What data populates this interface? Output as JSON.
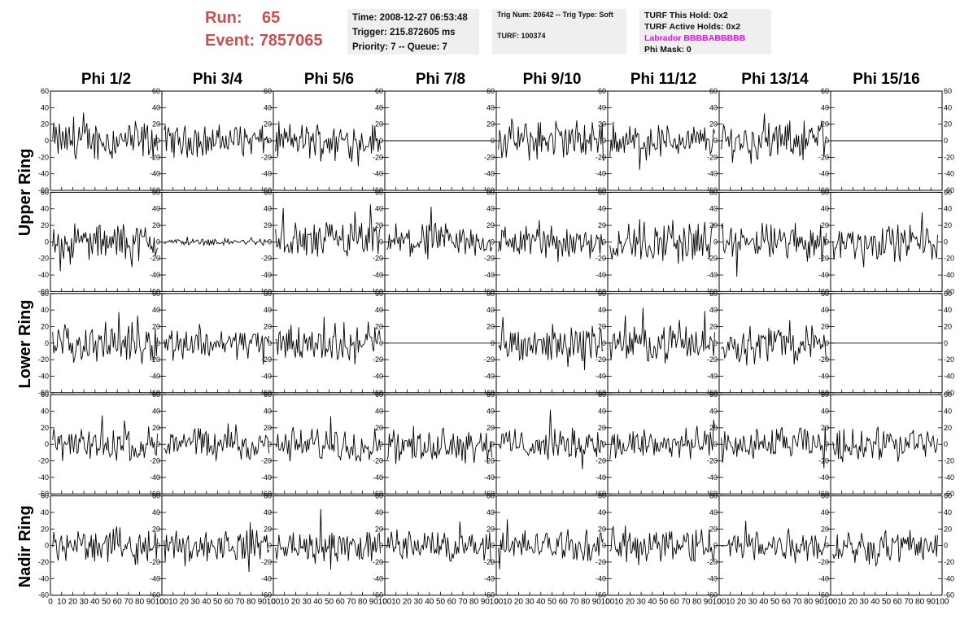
{
  "header": {
    "run_label": "Run:",
    "run_value": "65",
    "event_label": "Event:",
    "event_value": "7857065",
    "time": "Time: 2008-12-27 06:53:48",
    "trigger": "Trigger: 215.872605 ms",
    "priority": "Priority: 7 -- Queue: 7",
    "trig_num": "Trig Num: 20642 -- Trig Type: Soft",
    "turf": "TURF: 100374",
    "turf_this_hold": "TURF This Hold: 0x2",
    "turf_active_holds": "TURF Active Holds: 0x2",
    "labrador": "Labrador BBBBABBBBB",
    "phi_mask": "Phi Mask: 0"
  },
  "colors": {
    "run_text": "#cc4f4f",
    "labrador_text": "#ff00ff",
    "panel_bg": "#efefef",
    "trace": "#000000"
  },
  "chart_data": {
    "type": "line",
    "columns": [
      "Phi 1/2",
      "Phi 3/4",
      "Phi 5/6",
      "Phi 7/8",
      "Phi 9/10",
      "Phi 11/12",
      "Phi 13/14",
      "Phi 15/16"
    ],
    "ring_labels": [
      "Upper Ring",
      "Lower Ring",
      "Nadir Ring"
    ],
    "rows": 5,
    "xlim": [
      0,
      100
    ],
    "ylim": [
      -60,
      60
    ],
    "x_ticks": [
      "0",
      "10",
      "20",
      "30",
      "40",
      "50",
      "60",
      "70",
      "80",
      "90",
      "100"
    ],
    "y_ticks": [
      "-60",
      "-40",
      "-20",
      "0",
      "20",
      "40",
      "60"
    ],
    "flat_panels": [
      [
        0,
        3
      ],
      [
        0,
        7
      ],
      [
        2,
        3
      ],
      [
        2,
        7
      ]
    ],
    "amplitudes": [
      [
        18,
        14,
        16,
        0,
        18,
        15,
        17,
        0
      ],
      [
        16,
        3,
        18,
        16,
        15,
        20,
        17,
        16
      ],
      [
        17,
        14,
        17,
        0,
        16,
        16,
        17,
        0
      ],
      [
        15,
        15,
        15,
        15,
        14,
        15,
        15,
        15
      ],
      [
        15,
        14,
        15,
        14,
        14,
        17,
        15,
        15
      ]
    ]
  }
}
